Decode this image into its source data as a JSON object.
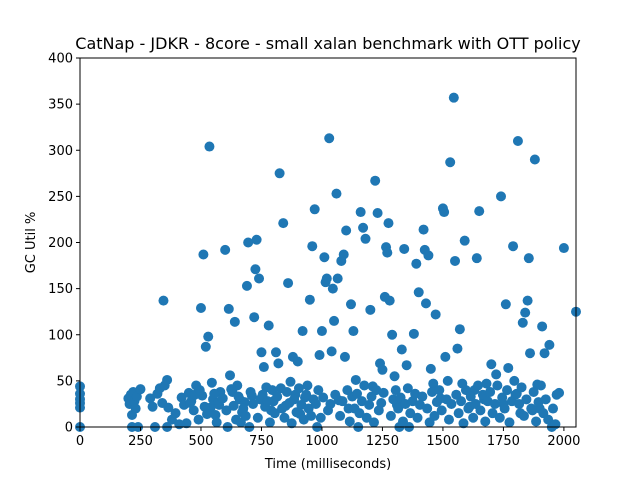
{
  "chart_data": {
    "type": "scatter",
    "title": "CatNap - JDKR - 8core -  small xalan benchmark with OTT policy",
    "xlabel": "Time (milliseconds)",
    "ylabel": "GC Util %",
    "xlim": [
      0,
      2050
    ],
    "ylim": [
      0,
      400
    ],
    "xticks": [
      0,
      250,
      500,
      750,
      1000,
      1250,
      1500,
      1750,
      2000
    ],
    "yticks": [
      0,
      50,
      100,
      150,
      200,
      250,
      300,
      350,
      400
    ],
    "marker_color": "#1f77b4",
    "series": [
      {
        "name": "GC Util",
        "points": [
          [
            0,
            44
          ],
          [
            0,
            36
          ],
          [
            0,
            30
          ],
          [
            0,
            26
          ],
          [
            0,
            21
          ],
          [
            0,
            0
          ],
          [
            200,
            31
          ],
          [
            205,
            25
          ],
          [
            210,
            35
          ],
          [
            215,
            13
          ],
          [
            215,
            0
          ],
          [
            220,
            38
          ],
          [
            225,
            28
          ],
          [
            230,
            20
          ],
          [
            235,
            33
          ],
          [
            240,
            0
          ],
          [
            250,
            41
          ],
          [
            290,
            31
          ],
          [
            300,
            22
          ],
          [
            310,
            0
          ],
          [
            320,
            36
          ],
          [
            330,
            42
          ],
          [
            340,
            26
          ],
          [
            345,
            137
          ],
          [
            350,
            45
          ],
          [
            360,
            0
          ],
          [
            360,
            51
          ],
          [
            365,
            21
          ],
          [
            420,
            32
          ],
          [
            430,
            24
          ],
          [
            440,
            4
          ],
          [
            450,
            37
          ],
          [
            460,
            28
          ],
          [
            470,
            18
          ],
          [
            480,
            45
          ],
          [
            490,
            8
          ],
          [
            500,
            129
          ],
          [
            505,
            34
          ],
          [
            510,
            187
          ],
          [
            520,
            87
          ],
          [
            530,
            98
          ],
          [
            535,
            304
          ],
          [
            540,
            21
          ],
          [
            545,
            48
          ],
          [
            550,
            30
          ],
          [
            560,
            13
          ],
          [
            570,
            26
          ],
          [
            580,
            38
          ],
          [
            600,
            192
          ],
          [
            610,
            0
          ],
          [
            615,
            128
          ],
          [
            620,
            56
          ],
          [
            630,
            38
          ],
          [
            635,
            23
          ],
          [
            640,
            114
          ],
          [
            650,
            45
          ],
          [
            660,
            30
          ],
          [
            670,
            16
          ],
          [
            680,
            27
          ],
          [
            690,
            153
          ],
          [
            695,
            200
          ],
          [
            700,
            0
          ],
          [
            710,
            34
          ],
          [
            720,
            119
          ],
          [
            725,
            171
          ],
          [
            730,
            203
          ],
          [
            740,
            161
          ],
          [
            750,
            81
          ],
          [
            760,
            65
          ],
          [
            770,
            43
          ],
          [
            780,
            110
          ],
          [
            790,
            18
          ],
          [
            800,
            28
          ],
          [
            810,
            81
          ],
          [
            820,
            69
          ],
          [
            825,
            275
          ],
          [
            830,
            42
          ],
          [
            840,
            221
          ],
          [
            850,
            23
          ],
          [
            860,
            156
          ],
          [
            870,
            49
          ],
          [
            880,
            76
          ],
          [
            890,
            35
          ],
          [
            900,
            71
          ],
          [
            910,
            14
          ],
          [
            920,
            104
          ],
          [
            930,
            32
          ],
          [
            940,
            45
          ],
          [
            950,
            138
          ],
          [
            960,
            196
          ],
          [
            970,
            236
          ],
          [
            980,
            0
          ],
          [
            990,
            78
          ],
          [
            1000,
            104
          ],
          [
            1010,
            184
          ],
          [
            1015,
            157
          ],
          [
            1020,
            161
          ],
          [
            1030,
            313
          ],
          [
            1040,
            82
          ],
          [
            1045,
            150
          ],
          [
            1050,
            115
          ],
          [
            1060,
            253
          ],
          [
            1065,
            161
          ],
          [
            1070,
            29
          ],
          [
            1080,
            180
          ],
          [
            1090,
            187
          ],
          [
            1095,
            76
          ],
          [
            1100,
            213
          ],
          [
            1110,
            20
          ],
          [
            1120,
            133
          ],
          [
            1130,
            104
          ],
          [
            1140,
            51
          ],
          [
            1150,
            0
          ],
          [
            1160,
            233
          ],
          [
            1170,
            216
          ],
          [
            1180,
            204
          ],
          [
            1200,
            127
          ],
          [
            1210,
            44
          ],
          [
            1220,
            267
          ],
          [
            1230,
            232
          ],
          [
            1240,
            69
          ],
          [
            1250,
            62
          ],
          [
            1260,
            141
          ],
          [
            1265,
            195
          ],
          [
            1270,
            189
          ],
          [
            1275,
            221
          ],
          [
            1280,
            137
          ],
          [
            1290,
            100
          ],
          [
            1300,
            55
          ],
          [
            1310,
            24
          ],
          [
            1320,
            0
          ],
          [
            1330,
            84
          ],
          [
            1340,
            193
          ],
          [
            1350,
            67
          ],
          [
            1360,
            0
          ],
          [
            1380,
            101
          ],
          [
            1390,
            177
          ],
          [
            1400,
            146
          ],
          [
            1420,
            214
          ],
          [
            1425,
            192
          ],
          [
            1430,
            134
          ],
          [
            1440,
            186
          ],
          [
            1450,
            63
          ],
          [
            1460,
            47
          ],
          [
            1470,
            122
          ],
          [
            1490,
            31
          ],
          [
            1500,
            237
          ],
          [
            1505,
            233
          ],
          [
            1510,
            76
          ],
          [
            1520,
            50
          ],
          [
            1530,
            287
          ],
          [
            1545,
            357
          ],
          [
            1550,
            180
          ],
          [
            1560,
            85
          ],
          [
            1570,
            106
          ],
          [
            1580,
            47
          ],
          [
            1590,
            202
          ],
          [
            1610,
            22
          ],
          [
            1630,
            40
          ],
          [
            1640,
            183
          ],
          [
            1650,
            234
          ],
          [
            1670,
            30
          ],
          [
            1680,
            47
          ],
          [
            1700,
            68
          ],
          [
            1720,
            57
          ],
          [
            1740,
            250
          ],
          [
            1750,
            25
          ],
          [
            1760,
            133
          ],
          [
            1770,
            64
          ],
          [
            1790,
            196
          ],
          [
            1800,
            35
          ],
          [
            1810,
            310
          ],
          [
            1820,
            15
          ],
          [
            1830,
            113
          ],
          [
            1840,
            124
          ],
          [
            1850,
            137
          ],
          [
            1855,
            183
          ],
          [
            1860,
            80
          ],
          [
            1870,
            18
          ],
          [
            1880,
            290
          ],
          [
            1890,
            46
          ],
          [
            1900,
            20
          ],
          [
            1910,
            109
          ],
          [
            1920,
            80
          ],
          [
            1940,
            89
          ],
          [
            1950,
            0
          ],
          [
            1970,
            35
          ],
          [
            1980,
            37
          ],
          [
            2000,
            194
          ],
          [
            2050,
            125
          ],
          [
            380,
            8
          ],
          [
            395,
            15
          ],
          [
            410,
            3
          ],
          [
            455,
            26
          ],
          [
            475,
            35
          ],
          [
            495,
            40
          ],
          [
            515,
            22
          ],
          [
            525,
            14
          ],
          [
            555,
            36
          ],
          [
            565,
            5
          ],
          [
            575,
            24
          ],
          [
            590,
            31
          ],
          [
            605,
            18
          ],
          [
            625,
            41
          ],
          [
            645,
            8
          ],
          [
            655,
            33
          ],
          [
            665,
            5
          ],
          [
            675,
            20
          ],
          [
            685,
            12
          ],
          [
            705,
            38
          ],
          [
            715,
            25
          ],
          [
            735,
            10
          ],
          [
            745,
            30
          ],
          [
            755,
            35
          ],
          [
            765,
            22
          ],
          [
            775,
            28
          ],
          [
            785,
            5
          ],
          [
            795,
            40
          ],
          [
            805,
            15
          ],
          [
            815,
            33
          ],
          [
            835,
            20
          ],
          [
            845,
            10
          ],
          [
            855,
            38
          ],
          [
            865,
            26
          ],
          [
            875,
            4
          ],
          [
            885,
            30
          ],
          [
            895,
            16
          ],
          [
            905,
            42
          ],
          [
            915,
            24
          ],
          [
            925,
            8
          ],
          [
            935,
            35
          ],
          [
            945,
            20
          ],
          [
            955,
            12
          ],
          [
            965,
            30
          ],
          [
            975,
            25
          ],
          [
            985,
            40
          ],
          [
            995,
            10
          ],
          [
            1005,
            32
          ],
          [
            1025,
            18
          ],
          [
            1035,
            25
          ],
          [
            1055,
            35
          ],
          [
            1075,
            12
          ],
          [
            1085,
            28
          ],
          [
            1105,
            40
          ],
          [
            1115,
            6
          ],
          [
            1125,
            33
          ],
          [
            1135,
            20
          ],
          [
            1145,
            36
          ],
          [
            1155,
            15
          ],
          [
            1165,
            28
          ],
          [
            1175,
            45
          ],
          [
            1185,
            10
          ],
          [
            1195,
            24
          ],
          [
            1205,
            33
          ],
          [
            1215,
            5
          ],
          [
            1225,
            40
          ],
          [
            1235,
            18
          ],
          [
            1245,
            26
          ],
          [
            1255,
            37
          ],
          [
            1285,
            12
          ],
          [
            1295,
            30
          ],
          [
            1305,
            40
          ],
          [
            1315,
            20
          ],
          [
            1325,
            32
          ],
          [
            1335,
            6
          ],
          [
            1345,
            25
          ],
          [
            1355,
            42
          ],
          [
            1365,
            15
          ],
          [
            1375,
            28
          ],
          [
            1385,
            36
          ],
          [
            1395,
            10
          ],
          [
            1405,
            24
          ],
          [
            1415,
            33
          ],
          [
            1435,
            20
          ],
          [
            1445,
            5
          ],
          [
            1455,
            38
          ],
          [
            1465,
            12
          ],
          [
            1475,
            27
          ],
          [
            1485,
            40
          ],
          [
            1495,
            18
          ],
          [
            1515,
            30
          ],
          [
            1525,
            8
          ],
          [
            1535,
            25
          ],
          [
            1555,
            35
          ],
          [
            1565,
            15
          ],
          [
            1575,
            28
          ],
          [
            1585,
            4
          ],
          [
            1595,
            40
          ],
          [
            1605,
            20
          ],
          [
            1615,
            33
          ],
          [
            1625,
            10
          ],
          [
            1635,
            25
          ],
          [
            1645,
            45
          ],
          [
            1655,
            18
          ],
          [
            1665,
            35
          ],
          [
            1675,
            6
          ],
          [
            1685,
            28
          ],
          [
            1695,
            38
          ],
          [
            1705,
            15
          ],
          [
            1715,
            25
          ],
          [
            1725,
            45
          ],
          [
            1735,
            10
          ],
          [
            1745,
            32
          ],
          [
            1755,
            20
          ],
          [
            1765,
            40
          ],
          [
            1775,
            5
          ],
          [
            1785,
            28
          ],
          [
            1795,
            50
          ],
          [
            1805,
            36
          ],
          [
            1815,
            25
          ],
          [
            1825,
            43
          ],
          [
            1835,
            12
          ],
          [
            1845,
            30
          ],
          [
            1865,
            20
          ],
          [
            1875,
            38
          ],
          [
            1885,
            6
          ],
          [
            1895,
            27
          ],
          [
            1905,
            45
          ],
          [
            1915,
            15
          ],
          [
            1925,
            30
          ],
          [
            1935,
            8
          ],
          [
            1955,
            20
          ],
          [
            1965,
            3
          ]
        ]
      }
    ]
  }
}
